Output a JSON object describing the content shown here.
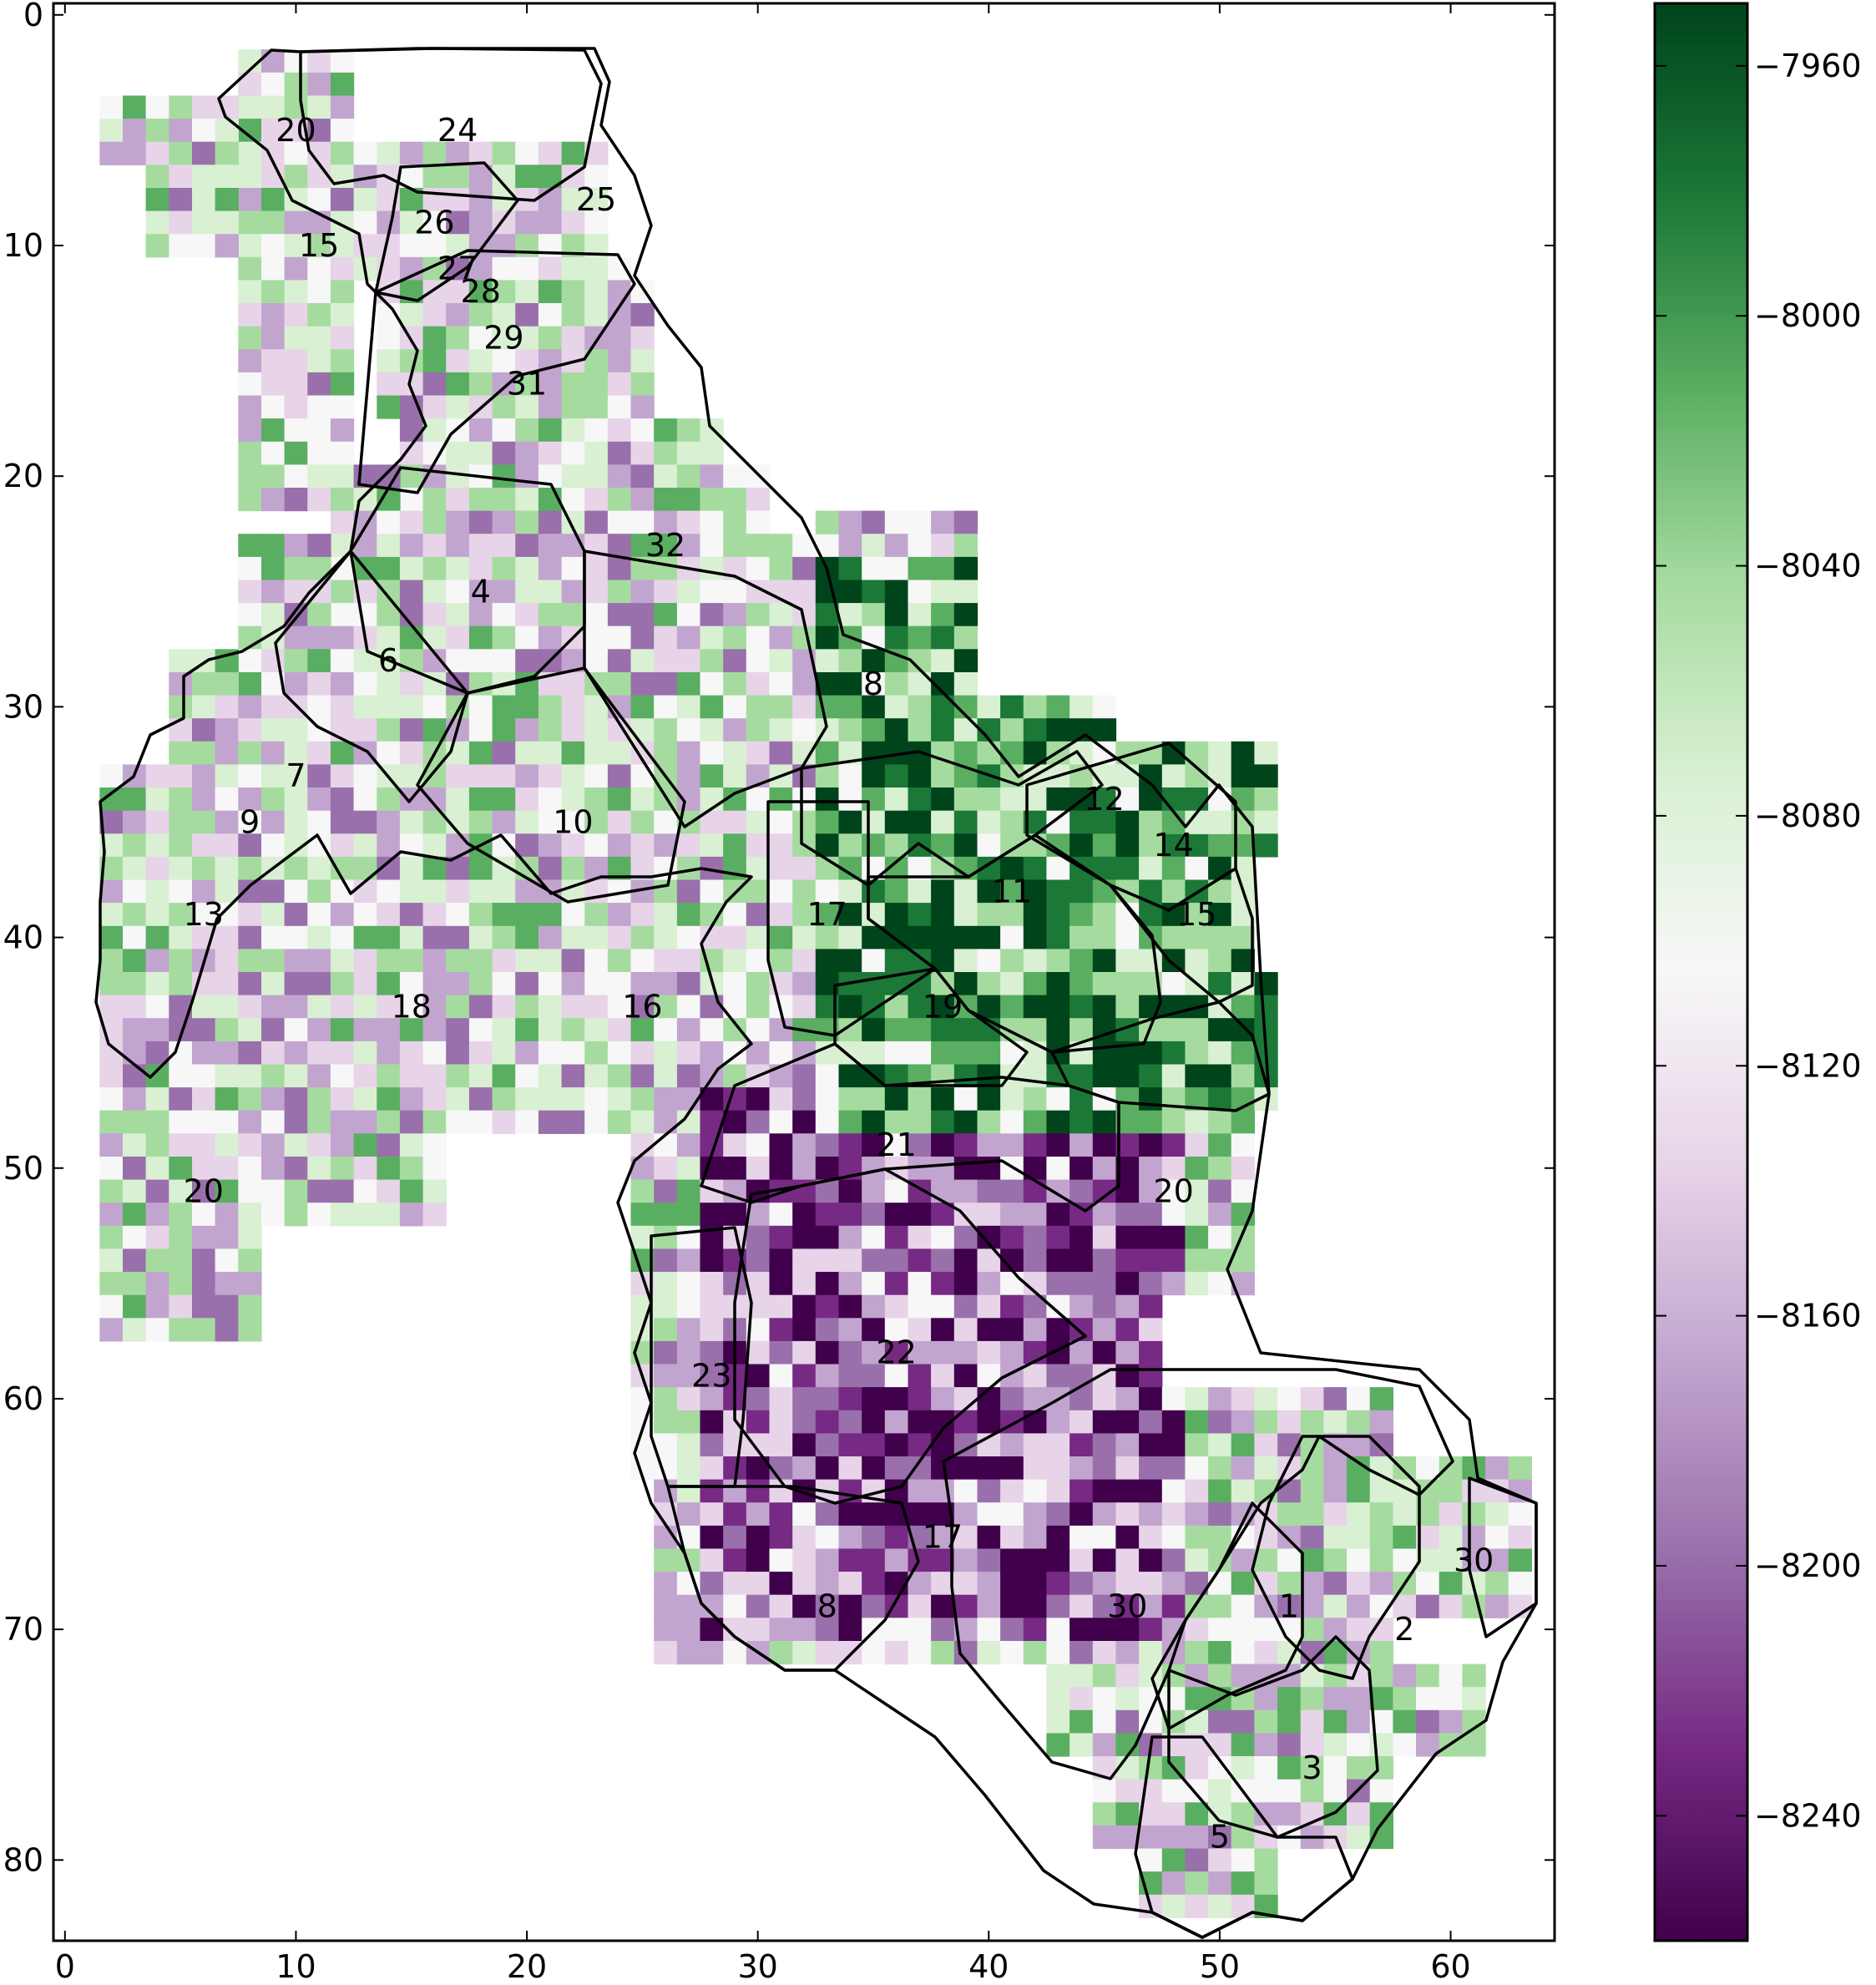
{
  "chart_data": {
    "type": "heatmap",
    "title": "",
    "xlabel": "",
    "ylabel": "",
    "xlim": [
      -0.5,
      64.5
    ],
    "ylim": [
      83.5,
      -0.5
    ],
    "x_ticks": [
      0,
      10,
      20,
      30,
      40,
      50,
      60
    ],
    "y_ticks": [
      0,
      10,
      20,
      30,
      40,
      50,
      60,
      70,
      80
    ],
    "y_inverted": true,
    "grid": false,
    "colormap": "PRGn",
    "color_min": -8260,
    "color_max": -7950,
    "colorbar_ticks": [
      -7960,
      -8000,
      -8040,
      -8080,
      -8120,
      -8160,
      -8200,
      -8240
    ],
    "colors": {
      "low": "#40004b",
      "mid": "#f7f7f7",
      "high": "#00441b"
    },
    "region_labels": [
      {
        "text": "20",
        "x": 10,
        "y": 5
      },
      {
        "text": "24",
        "x": 17,
        "y": 5
      },
      {
        "text": "25",
        "x": 23,
        "y": 8
      },
      {
        "text": "15",
        "x": 11,
        "y": 10
      },
      {
        "text": "26",
        "x": 16,
        "y": 9
      },
      {
        "text": "27",
        "x": 17,
        "y": 11
      },
      {
        "text": "28",
        "x": 18,
        "y": 12
      },
      {
        "text": "29",
        "x": 19,
        "y": 14
      },
      {
        "text": "31",
        "x": 20,
        "y": 16
      },
      {
        "text": "32",
        "x": 26,
        "y": 23
      },
      {
        "text": "4",
        "x": 18,
        "y": 25
      },
      {
        "text": "6",
        "x": 14,
        "y": 28
      },
      {
        "text": "8",
        "x": 35,
        "y": 29
      },
      {
        "text": "7",
        "x": 10,
        "y": 33
      },
      {
        "text": "9",
        "x": 8,
        "y": 35
      },
      {
        "text": "10",
        "x": 22,
        "y": 35
      },
      {
        "text": "12",
        "x": 45,
        "y": 34
      },
      {
        "text": "14",
        "x": 48,
        "y": 36
      },
      {
        "text": "13",
        "x": 6,
        "y": 39
      },
      {
        "text": "17",
        "x": 33,
        "y": 39
      },
      {
        "text": "11",
        "x": 41,
        "y": 38
      },
      {
        "text": "15",
        "x": 49,
        "y": 39
      },
      {
        "text": "18",
        "x": 15,
        "y": 43
      },
      {
        "text": "16",
        "x": 25,
        "y": 43
      },
      {
        "text": "19",
        "x": 38,
        "y": 43
      },
      {
        "text": "21",
        "x": 36,
        "y": 49
      },
      {
        "text": "20",
        "x": 6,
        "y": 51
      },
      {
        "text": "20",
        "x": 48,
        "y": 51
      },
      {
        "text": "22",
        "x": 36,
        "y": 58
      },
      {
        "text": "23",
        "x": 28,
        "y": 59
      },
      {
        "text": "17",
        "x": 38,
        "y": 66
      },
      {
        "text": "30",
        "x": 61,
        "y": 67
      },
      {
        "text": "8",
        "x": 33,
        "y": 69
      },
      {
        "text": "30",
        "x": 46,
        "y": 69
      },
      {
        "text": "1",
        "x": 53,
        "y": 69
      },
      {
        "text": "2",
        "x": 58,
        "y": 70
      },
      {
        "text": "3",
        "x": 54,
        "y": 76
      },
      {
        "text": "5",
        "x": 50,
        "y": 79
      }
    ]
  }
}
